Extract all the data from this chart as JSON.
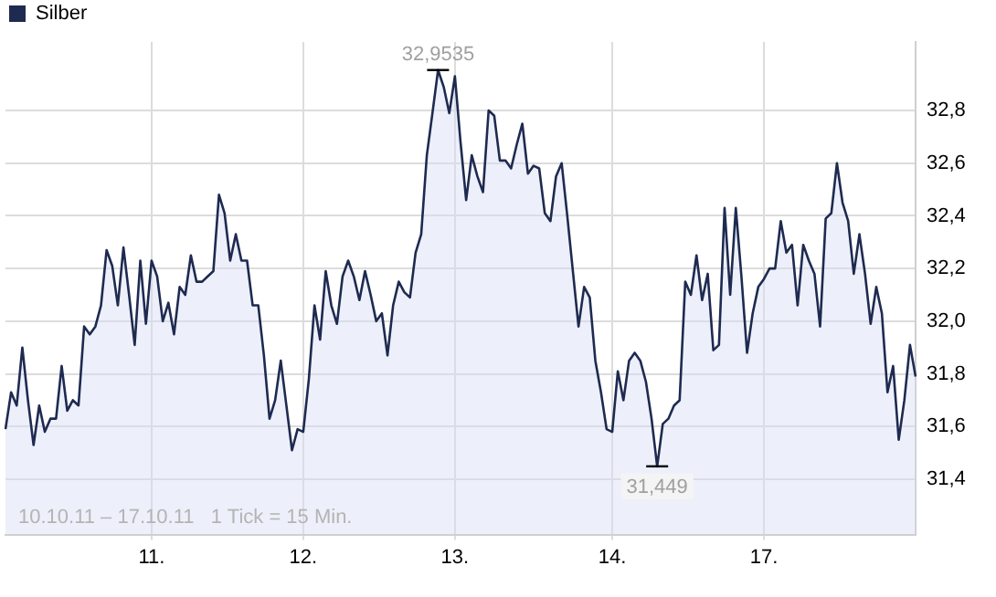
{
  "chart_data": {
    "type": "area",
    "legend": "top left",
    "grid": true,
    "marker": "none",
    "categories": [
      null,
      null,
      null,
      null,
      null,
      null,
      null,
      null,
      null,
      null,
      null,
      null,
      null,
      null,
      null,
      null,
      null,
      null,
      null,
      null,
      null,
      null,
      null,
      null,
      null,
      null,
      "11.",
      null,
      null,
      null,
      null,
      null,
      null,
      null,
      null,
      null,
      null,
      null,
      null,
      null,
      null,
      null,
      null,
      null,
      null,
      null,
      null,
      null,
      null,
      null,
      null,
      null,
      null,
      "12.",
      null,
      null,
      null,
      null,
      null,
      null,
      null,
      null,
      null,
      null,
      null,
      null,
      null,
      null,
      null,
      null,
      null,
      null,
      null,
      null,
      null,
      null,
      null,
      null,
      null,
      null,
      "13.",
      null,
      null,
      null,
      null,
      null,
      null,
      null,
      null,
      null,
      null,
      null,
      null,
      null,
      null,
      null,
      null,
      null,
      null,
      null,
      null,
      null,
      null,
      null,
      null,
      null,
      null,
      null,
      "14.",
      null,
      null,
      null,
      null,
      null,
      null,
      null,
      null,
      null,
      null,
      null,
      null,
      null,
      null,
      null,
      null,
      null,
      null,
      null,
      null,
      null,
      null,
      null,
      null,
      null,
      null,
      "17.",
      null,
      null,
      null,
      null,
      null,
      null,
      null,
      null,
      null,
      null,
      null,
      null,
      null,
      null,
      null,
      null,
      null,
      null,
      null,
      null,
      null,
      null,
      null,
      null,
      null,
      null,
      null
    ],
    "ylim": [
      31.19,
      33.06
    ],
    "yticks": [
      {
        "value": 31.4,
        "label": "31,4"
      },
      {
        "value": 31.6,
        "label": "31,6"
      },
      {
        "value": 31.8,
        "label": "31,8"
      },
      {
        "value": 32.0,
        "label": "32,0"
      },
      {
        "value": 32.2,
        "label": "32,2"
      },
      {
        "value": 32.4,
        "label": "32,4"
      },
      {
        "value": 32.6,
        "label": "32,6"
      },
      {
        "value": 32.8,
        "label": "32,8"
      }
    ],
    "annotations": [
      {
        "text": "32,9535",
        "y": 32.9535
      },
      {
        "text": "31,449",
        "y": 31.449
      },
      "10.10.11 – 17.10.11   1 Tick = 15 Min."
    ],
    "series": [
      {
        "name": "Silber",
        "color": "#1e2a50",
        "values": [
          31.59,
          31.73,
          31.68,
          31.9,
          31.7,
          31.53,
          31.68,
          31.58,
          31.63,
          31.63,
          31.83,
          31.66,
          31.7,
          31.68,
          31.98,
          31.95,
          31.98,
          32.06,
          32.27,
          32.21,
          32.06,
          32.28,
          32.1,
          31.91,
          32.23,
          31.99,
          32.23,
          32.17,
          32.0,
          32.07,
          31.95,
          32.13,
          32.1,
          32.25,
          32.15,
          32.15,
          32.17,
          32.19,
          32.48,
          32.41,
          32.23,
          32.33,
          32.23,
          32.23,
          32.06,
          32.06,
          31.87,
          31.63,
          31.7,
          31.85,
          31.68,
          31.51,
          31.59,
          31.58,
          31.78,
          32.06,
          31.93,
          32.19,
          32.06,
          31.99,
          32.17,
          32.23,
          32.17,
          32.08,
          32.19,
          32.1,
          32.0,
          32.03,
          31.87,
          32.06,
          32.15,
          32.11,
          32.09,
          32.26,
          32.33,
          32.63,
          32.79,
          32.9535,
          32.89,
          32.79,
          32.93,
          32.68,
          32.46,
          32.63,
          32.55,
          32.49,
          32.8,
          32.78,
          32.61,
          32.61,
          32.58,
          32.67,
          32.75,
          32.56,
          32.59,
          32.58,
          32.41,
          32.38,
          32.55,
          32.6,
          32.4,
          32.19,
          31.98,
          32.13,
          32.09,
          31.85,
          31.73,
          31.59,
          31.58,
          31.81,
          31.7,
          31.85,
          31.88,
          31.85,
          31.77,
          31.63,
          31.449,
          31.61,
          31.63,
          31.68,
          31.7,
          32.15,
          32.1,
          32.25,
          32.08,
          32.18,
          31.89,
          31.91,
          32.43,
          32.1,
          32.43,
          32.17,
          31.88,
          32.03,
          32.13,
          32.16,
          32.2,
          32.2,
          32.38,
          32.26,
          32.29,
          32.06,
          32.29,
          32.23,
          32.18,
          31.98,
          32.39,
          32.41,
          32.6,
          32.45,
          32.38,
          32.18,
          32.33,
          32.18,
          31.99,
          32.13,
          32.03,
          31.73,
          31.83,
          31.55,
          31.7,
          31.91,
          31.79
        ]
      }
    ]
  }
}
